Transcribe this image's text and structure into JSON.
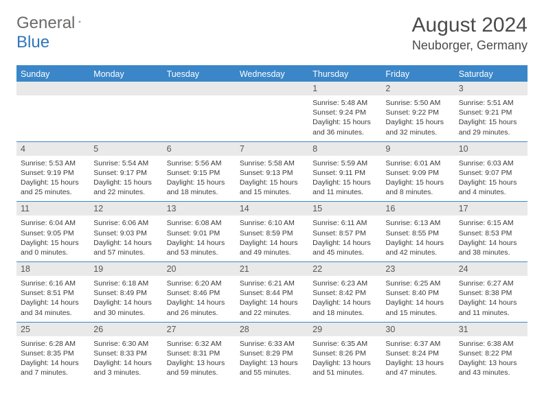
{
  "logo": {
    "text_a": "General",
    "text_b": "Blue",
    "accent": "#2f76ba",
    "gray": "#6a6a6a"
  },
  "title": {
    "month": "August 2024",
    "location": "Neuborger, Germany"
  },
  "colors": {
    "header_bg": "#3a86c8",
    "header_text": "#ffffff",
    "dnum_bg": "#e9e9e9",
    "body_text": "#3a3a3a",
    "sep": "#3a86c8"
  },
  "dow": [
    "Sunday",
    "Monday",
    "Tuesday",
    "Wednesday",
    "Thursday",
    "Friday",
    "Saturday"
  ],
  "weeks": [
    {
      "nums": [
        "",
        "",
        "",
        "",
        "1",
        "2",
        "3"
      ],
      "cells": [
        null,
        null,
        null,
        null,
        {
          "sunrise": "5:48 AM",
          "sunset": "9:24 PM",
          "day_a": "Daylight: 15 hours",
          "day_b": "and 36 minutes."
        },
        {
          "sunrise": "5:50 AM",
          "sunset": "9:22 PM",
          "day_a": "Daylight: 15 hours",
          "day_b": "and 32 minutes."
        },
        {
          "sunrise": "5:51 AM",
          "sunset": "9:21 PM",
          "day_a": "Daylight: 15 hours",
          "day_b": "and 29 minutes."
        }
      ]
    },
    {
      "nums": [
        "4",
        "5",
        "6",
        "7",
        "8",
        "9",
        "10"
      ],
      "cells": [
        {
          "sunrise": "5:53 AM",
          "sunset": "9:19 PM",
          "day_a": "Daylight: 15 hours",
          "day_b": "and 25 minutes."
        },
        {
          "sunrise": "5:54 AM",
          "sunset": "9:17 PM",
          "day_a": "Daylight: 15 hours",
          "day_b": "and 22 minutes."
        },
        {
          "sunrise": "5:56 AM",
          "sunset": "9:15 PM",
          "day_a": "Daylight: 15 hours",
          "day_b": "and 18 minutes."
        },
        {
          "sunrise": "5:58 AM",
          "sunset": "9:13 PM",
          "day_a": "Daylight: 15 hours",
          "day_b": "and 15 minutes."
        },
        {
          "sunrise": "5:59 AM",
          "sunset": "9:11 PM",
          "day_a": "Daylight: 15 hours",
          "day_b": "and 11 minutes."
        },
        {
          "sunrise": "6:01 AM",
          "sunset": "9:09 PM",
          "day_a": "Daylight: 15 hours",
          "day_b": "and 8 minutes."
        },
        {
          "sunrise": "6:03 AM",
          "sunset": "9:07 PM",
          "day_a": "Daylight: 15 hours",
          "day_b": "and 4 minutes."
        }
      ]
    },
    {
      "nums": [
        "11",
        "12",
        "13",
        "14",
        "15",
        "16",
        "17"
      ],
      "cells": [
        {
          "sunrise": "6:04 AM",
          "sunset": "9:05 PM",
          "day_a": "Daylight: 15 hours",
          "day_b": "and 0 minutes."
        },
        {
          "sunrise": "6:06 AM",
          "sunset": "9:03 PM",
          "day_a": "Daylight: 14 hours",
          "day_b": "and 57 minutes."
        },
        {
          "sunrise": "6:08 AM",
          "sunset": "9:01 PM",
          "day_a": "Daylight: 14 hours",
          "day_b": "and 53 minutes."
        },
        {
          "sunrise": "6:10 AM",
          "sunset": "8:59 PM",
          "day_a": "Daylight: 14 hours",
          "day_b": "and 49 minutes."
        },
        {
          "sunrise": "6:11 AM",
          "sunset": "8:57 PM",
          "day_a": "Daylight: 14 hours",
          "day_b": "and 45 minutes."
        },
        {
          "sunrise": "6:13 AM",
          "sunset": "8:55 PM",
          "day_a": "Daylight: 14 hours",
          "day_b": "and 42 minutes."
        },
        {
          "sunrise": "6:15 AM",
          "sunset": "8:53 PM",
          "day_a": "Daylight: 14 hours",
          "day_b": "and 38 minutes."
        }
      ]
    },
    {
      "nums": [
        "18",
        "19",
        "20",
        "21",
        "22",
        "23",
        "24"
      ],
      "cells": [
        {
          "sunrise": "6:16 AM",
          "sunset": "8:51 PM",
          "day_a": "Daylight: 14 hours",
          "day_b": "and 34 minutes."
        },
        {
          "sunrise": "6:18 AM",
          "sunset": "8:49 PM",
          "day_a": "Daylight: 14 hours",
          "day_b": "and 30 minutes."
        },
        {
          "sunrise": "6:20 AM",
          "sunset": "8:46 PM",
          "day_a": "Daylight: 14 hours",
          "day_b": "and 26 minutes."
        },
        {
          "sunrise": "6:21 AM",
          "sunset": "8:44 PM",
          "day_a": "Daylight: 14 hours",
          "day_b": "and 22 minutes."
        },
        {
          "sunrise": "6:23 AM",
          "sunset": "8:42 PM",
          "day_a": "Daylight: 14 hours",
          "day_b": "and 18 minutes."
        },
        {
          "sunrise": "6:25 AM",
          "sunset": "8:40 PM",
          "day_a": "Daylight: 14 hours",
          "day_b": "and 15 minutes."
        },
        {
          "sunrise": "6:27 AM",
          "sunset": "8:38 PM",
          "day_a": "Daylight: 14 hours",
          "day_b": "and 11 minutes."
        }
      ]
    },
    {
      "nums": [
        "25",
        "26",
        "27",
        "28",
        "29",
        "30",
        "31"
      ],
      "cells": [
        {
          "sunrise": "6:28 AM",
          "sunset": "8:35 PM",
          "day_a": "Daylight: 14 hours",
          "day_b": "and 7 minutes."
        },
        {
          "sunrise": "6:30 AM",
          "sunset": "8:33 PM",
          "day_a": "Daylight: 14 hours",
          "day_b": "and 3 minutes."
        },
        {
          "sunrise": "6:32 AM",
          "sunset": "8:31 PM",
          "day_a": "Daylight: 13 hours",
          "day_b": "and 59 minutes."
        },
        {
          "sunrise": "6:33 AM",
          "sunset": "8:29 PM",
          "day_a": "Daylight: 13 hours",
          "day_b": "and 55 minutes."
        },
        {
          "sunrise": "6:35 AM",
          "sunset": "8:26 PM",
          "day_a": "Daylight: 13 hours",
          "day_b": "and 51 minutes."
        },
        {
          "sunrise": "6:37 AM",
          "sunset": "8:24 PM",
          "day_a": "Daylight: 13 hours",
          "day_b": "and 47 minutes."
        },
        {
          "sunrise": "6:38 AM",
          "sunset": "8:22 PM",
          "day_a": "Daylight: 13 hours",
          "day_b": "and 43 minutes."
        }
      ]
    }
  ]
}
